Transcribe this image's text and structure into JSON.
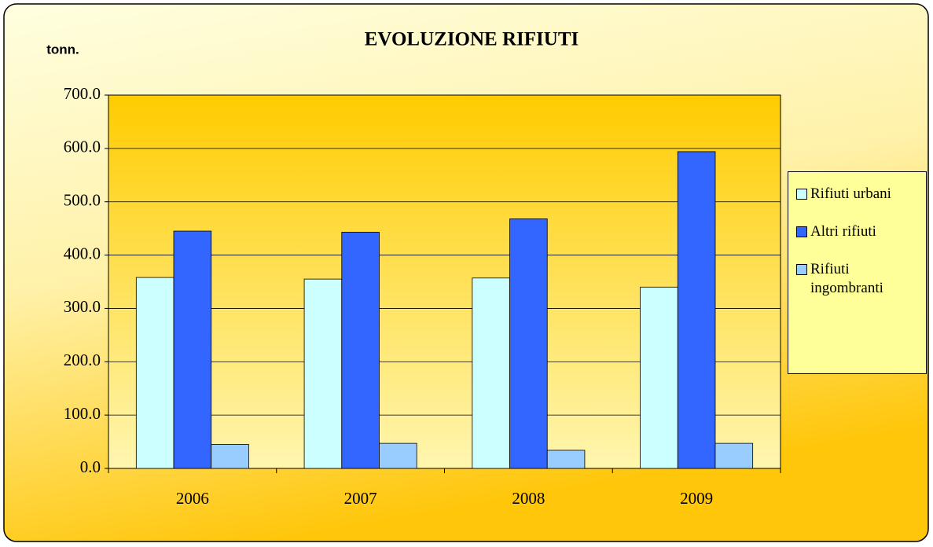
{
  "chart_data": {
    "type": "bar",
    "title": "EVOLUZIONE RIFIUTI",
    "y_axis_label": "tonn.",
    "categories": [
      "2006",
      "2007",
      "2008",
      "2009"
    ],
    "series": [
      {
        "name": "Rifiuti urbani",
        "color": "#ccffff",
        "values": [
          358,
          355,
          357,
          340
        ]
      },
      {
        "name": "Altri rifiuti",
        "color": "#3366ff",
        "values": [
          445,
          443,
          468,
          594
        ]
      },
      {
        "name": "Rifiuti ingombranti",
        "color": "#99ccff",
        "values": [
          45,
          47,
          34,
          47
        ]
      }
    ],
    "ylim": [
      0,
      700
    ],
    "yticks": [
      {
        "value": 0,
        "label": "0.0"
      },
      {
        "value": 100,
        "label": "100.0"
      },
      {
        "value": 200,
        "label": "200.0"
      },
      {
        "value": 300,
        "label": "300.0"
      },
      {
        "value": 400,
        "label": "400.0"
      },
      {
        "value": 500,
        "label": "500.0"
      },
      {
        "value": 600,
        "label": "600.0"
      },
      {
        "value": 700,
        "label": "700.0"
      }
    ],
    "grid": true,
    "legend": "right"
  }
}
